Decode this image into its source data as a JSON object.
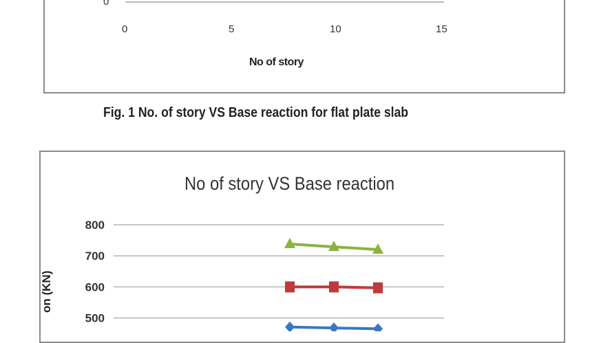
{
  "chart_data": [
    {
      "type": "line",
      "title": "",
      "xlabel": "No of story",
      "ylabel": "",
      "xlim": [
        0,
        15
      ],
      "x_ticks": [
        "0",
        "5",
        "10",
        "15"
      ],
      "y_ticks_visible": [
        "0"
      ],
      "series": []
    },
    {
      "type": "line",
      "title": "No of story VS Base reaction",
      "ylabel": "on (KN)",
      "ylim": [
        400,
        800
      ],
      "y_ticks": [
        "800",
        "700",
        "600",
        "500"
      ],
      "grid": true,
      "x": [
        8,
        10,
        12
      ],
      "series": [
        {
          "values": [
            738,
            729,
            720
          ],
          "color": "#8ab43e",
          "marker": "triangle"
        },
        {
          "values": [
            600,
            600,
            597
          ],
          "color": "#c0393b",
          "marker": "square"
        },
        {
          "values": [
            471,
            468,
            465
          ],
          "color": "#3a78c2",
          "marker": "diamond"
        }
      ]
    }
  ],
  "caption": "Fig. 1 No. of story VS Base reaction for flat plate slab"
}
